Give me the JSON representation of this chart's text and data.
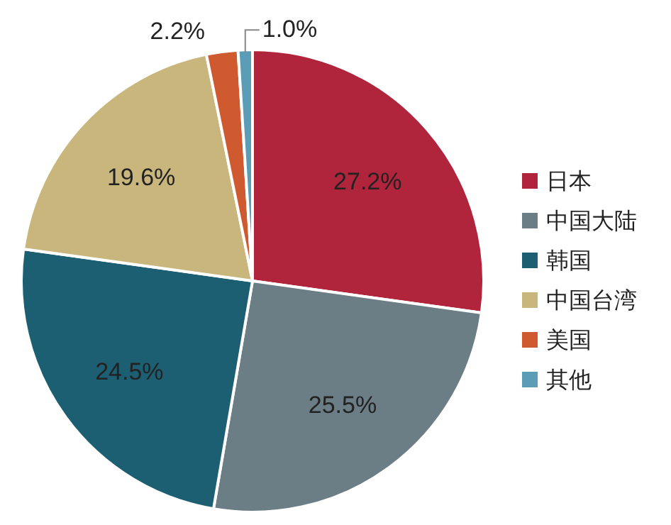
{
  "chart_data": {
    "type": "pie",
    "categories": [
      "日本",
      "中国大陆",
      "韩国",
      "中国台湾",
      "美国",
      "其他"
    ],
    "values": [
      27.2,
      25.5,
      24.5,
      19.6,
      2.2,
      1.0
    ],
    "colors": [
      "#b0243c",
      "#6b7d85",
      "#1d5f72",
      "#c8b67d",
      "#cf5a2f",
      "#5b9db6"
    ],
    "value_labels": [
      "27.2%",
      "25.5%",
      "24.5%",
      "19.6%",
      "2.2%",
      "1.0%"
    ],
    "legend": "right"
  }
}
